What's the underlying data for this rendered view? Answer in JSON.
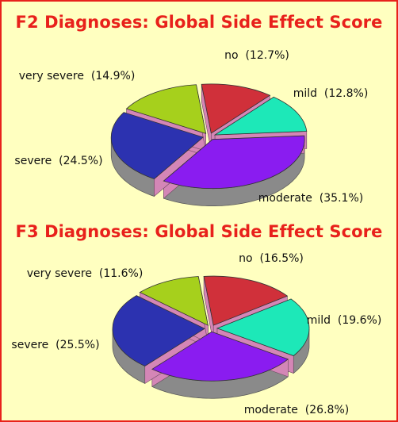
{
  "colors": {
    "border": "#e8211b",
    "background": "#ffffc0",
    "title": "#e8211b",
    "side": "#8a8a8a",
    "gap": "#d486b6"
  },
  "chart_data": [
    {
      "type": "pie",
      "title": "F2 Diagnoses: Global Side Effect Score",
      "slices": [
        {
          "label": "no",
          "value": 12.7,
          "display": "no  (12.7%)",
          "color": "#d0303a"
        },
        {
          "label": "mild",
          "value": 12.8,
          "display": "mild  (12.8%)",
          "color": "#1de8b8"
        },
        {
          "label": "moderate",
          "value": 35.1,
          "display": "moderate  (35.1%)",
          "color": "#8a1cf0"
        },
        {
          "label": "severe",
          "value": 24.5,
          "display": "severe  (24.5%)",
          "color": "#2c32b0"
        },
        {
          "label": "very severe",
          "value": 14.9,
          "display": "very severe  (14.9%)",
          "color": "#a6d01c"
        }
      ]
    },
    {
      "type": "pie",
      "title": "F3 Diagnoses: Global Side Effect Score",
      "slices": [
        {
          "label": "no",
          "value": 16.5,
          "display": "no  (16.5%)",
          "color": "#d0303a"
        },
        {
          "label": "mild",
          "value": 19.6,
          "display": "mild  (19.6%)",
          "color": "#1de8b8"
        },
        {
          "label": "moderate",
          "value": 26.8,
          "display": "moderate  (26.8%)",
          "color": "#8a1cf0"
        },
        {
          "label": "severe",
          "value": 25.5,
          "display": "severe  (25.5%)",
          "color": "#2c32b0"
        },
        {
          "label": "very severe",
          "value": 11.6,
          "display": "very severe  (11.6%)",
          "color": "#a6d01c"
        }
      ]
    }
  ]
}
